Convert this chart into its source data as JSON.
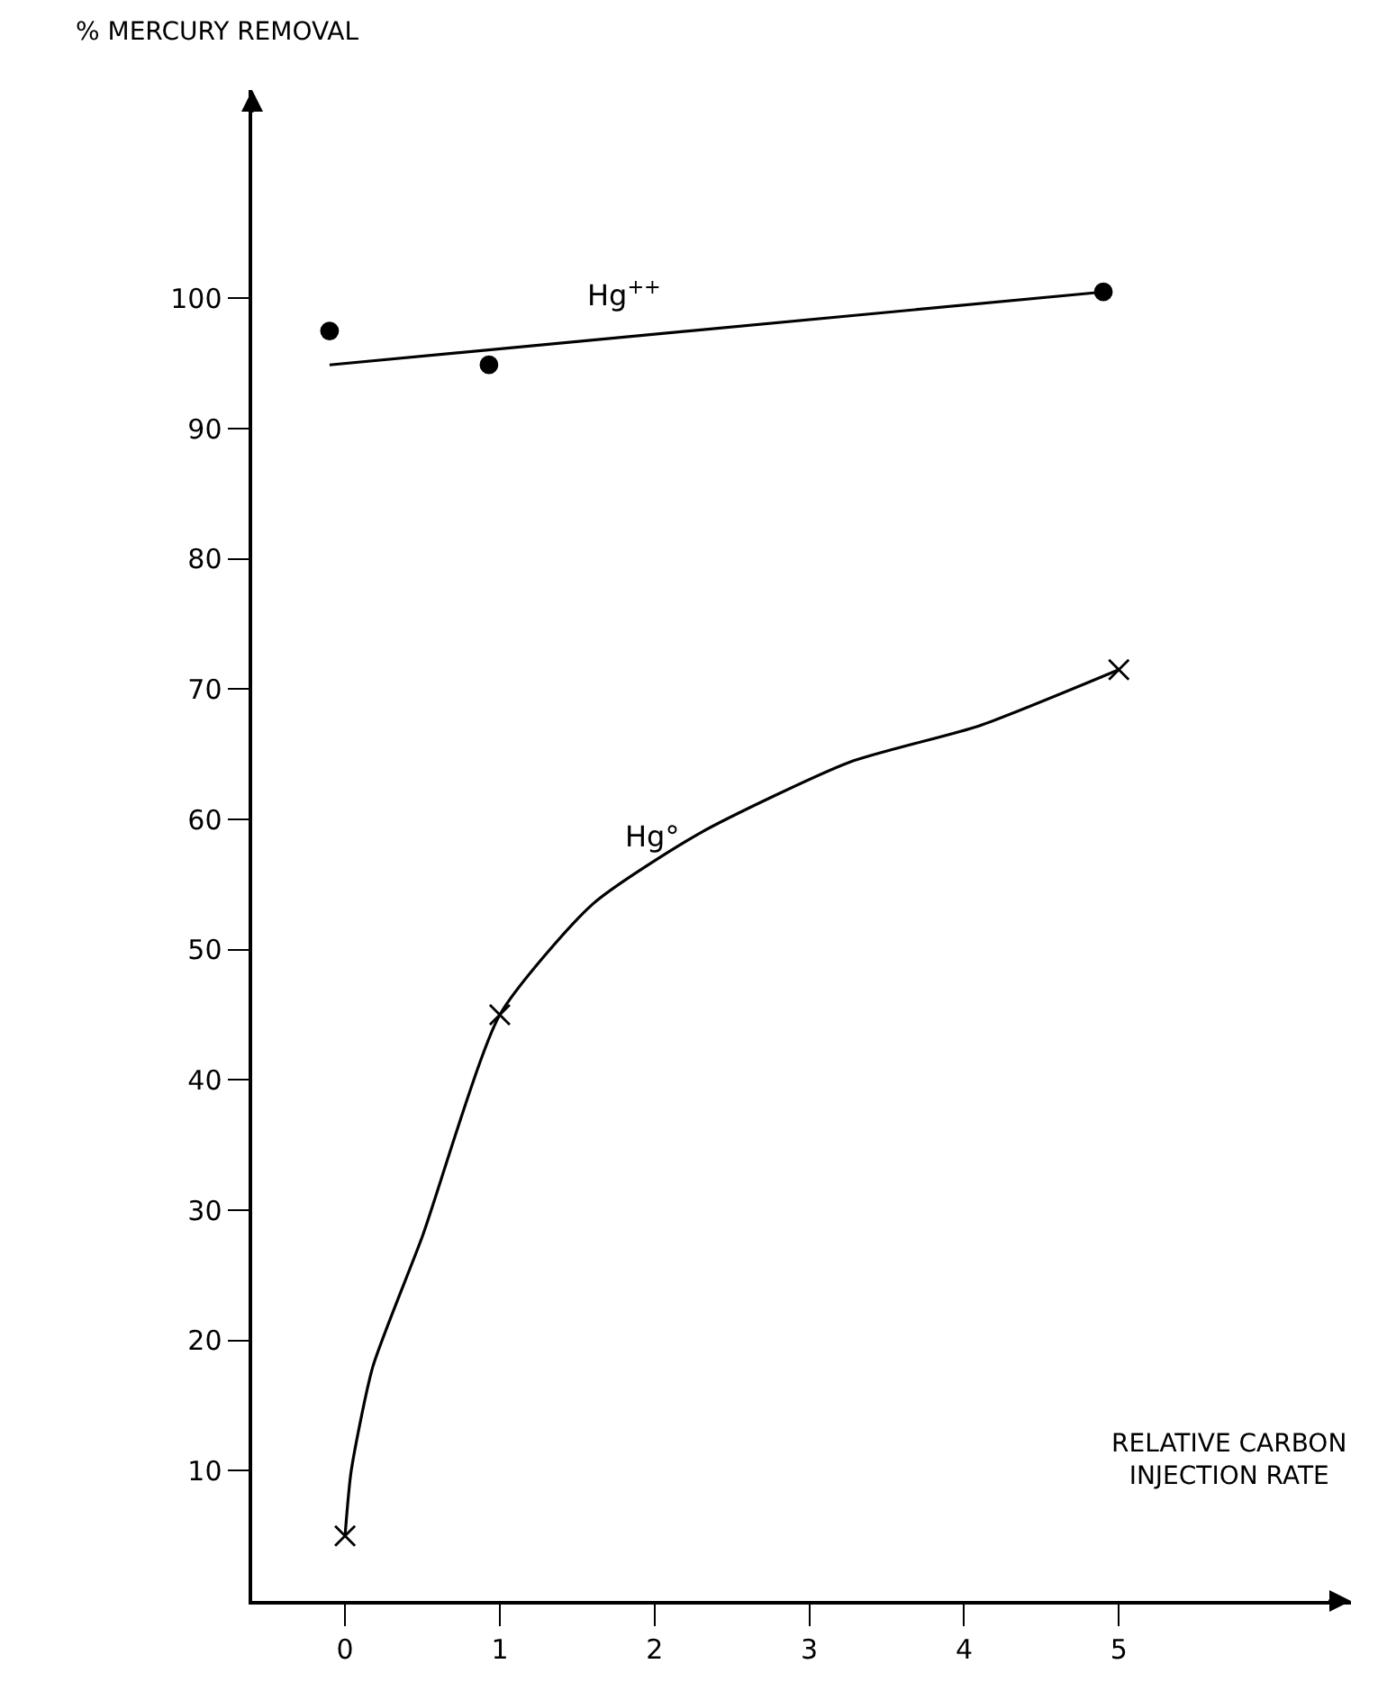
{
  "chart_data": {
    "type": "scatter",
    "ylabel": "% MERCURY REMOVAL",
    "xlabel": "RELATIVE CARBON\nINJECTION RATE",
    "xlim": [
      -0.6,
      6.5
    ],
    "ylim": [
      0,
      116
    ],
    "xticks": [
      0,
      1,
      2,
      3,
      4,
      5
    ],
    "yticks": [
      10,
      20,
      30,
      40,
      50,
      60,
      70,
      80,
      90,
      100
    ],
    "grid": false,
    "legend": false,
    "series": [
      {
        "marker": "circle",
        "color": "#000000",
        "x": [
          -0.1,
          0.93,
          4.9
        ],
        "values": [
          97.5,
          94.9,
          100.5
        ]
      },
      {
        "type": "line",
        "name": "Hg$^{++}$",
        "marker": "none",
        "line_style": "solid",
        "color": "#000000",
        "x": [
          -0.1,
          4.9
        ],
        "values": [
          94.9,
          100.5
        ]
      },
      {
        "marker": "cross",
        "color": "#000000",
        "x": [
          0,
          1,
          5
        ],
        "values": [
          5,
          45,
          71.5
        ]
      },
      {
        "type": "line",
        "name": "Hg°",
        "marker": "none",
        "line_style": "solid",
        "color": "#000000",
        "x": [
          0,
          0.04,
          0.18,
          0.5,
          1,
          1.6,
          2.3,
          3.26,
          4.1,
          5
        ],
        "values": [
          5,
          10,
          18,
          28,
          45,
          53.5,
          59,
          64.4,
          67.2,
          71.5
        ]
      }
    ]
  }
}
